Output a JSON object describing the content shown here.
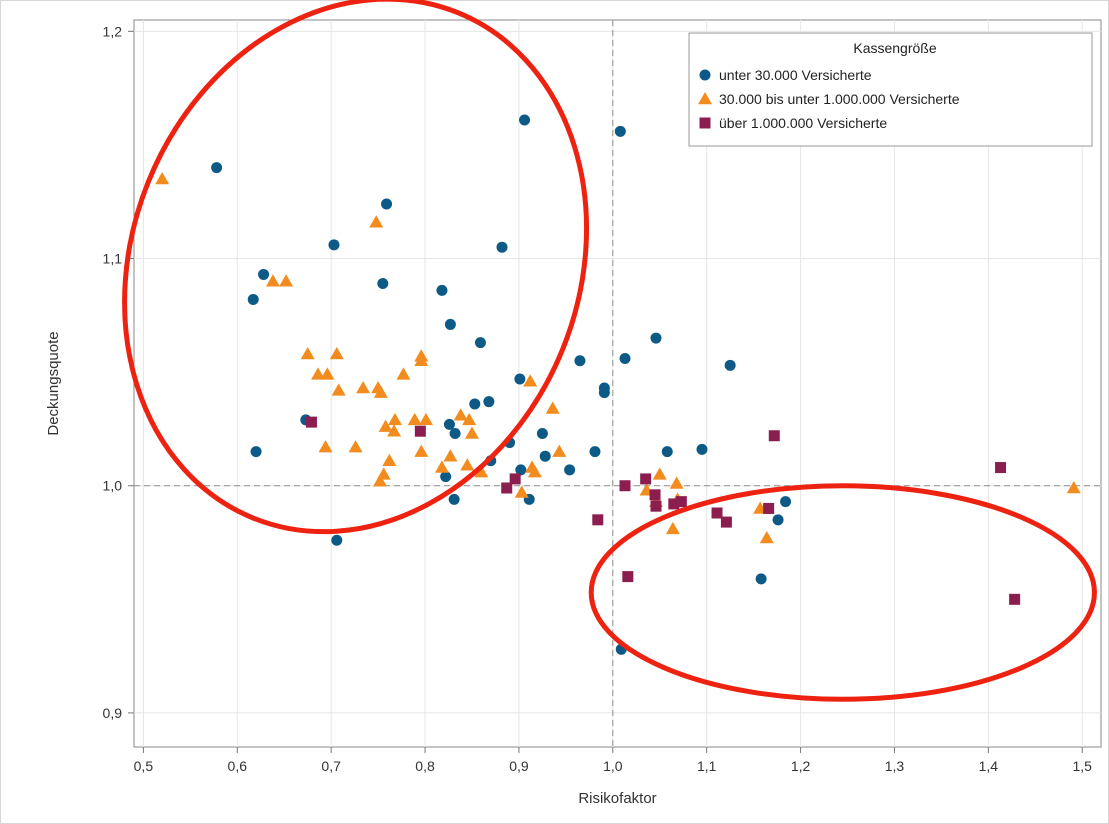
{
  "chart_data": {
    "type": "scatter",
    "xlabel": "Risikofaktor",
    "ylabel": "Deckungsquote",
    "xlim": [
      0.49,
      1.52
    ],
    "ylim": [
      0.885,
      1.205
    ],
    "x_ticks": [
      "0,5",
      "0,6",
      "0,7",
      "0,8",
      "0,9",
      "1,0",
      "1,1",
      "1,2",
      "1,3",
      "1,4",
      "1,5"
    ],
    "y_ticks": [
      "0,9",
      "1,0",
      "1,1",
      "1,2"
    ],
    "reference_lines": {
      "x": 1.0,
      "y": 1.0
    },
    "grid": true,
    "legend": {
      "title": "Kassengröße",
      "placement": "top-right"
    },
    "series": [
      {
        "name": "unter 30.000 Versicherte",
        "marker": "circle",
        "color": "#0d5a86",
        "points": [
          [
            0.578,
            1.14
          ],
          [
            0.628,
            1.093
          ],
          [
            0.617,
            1.082
          ],
          [
            0.703,
            1.106
          ],
          [
            0.759,
            1.124
          ],
          [
            0.755,
            1.089
          ],
          [
            0.906,
            1.161
          ],
          [
            1.008,
            1.156
          ],
          [
            0.882,
            1.105
          ],
          [
            0.818,
            1.086
          ],
          [
            0.827,
            1.071
          ],
          [
            0.859,
            1.063
          ],
          [
            0.901,
            1.047
          ],
          [
            0.965,
            1.055
          ],
          [
            1.013,
            1.056
          ],
          [
            1.046,
            1.065
          ],
          [
            1.125,
            1.053
          ],
          [
            0.991,
            1.043
          ],
          [
            0.991,
            1.041
          ],
          [
            0.853,
            1.036
          ],
          [
            0.868,
            1.037
          ],
          [
            0.673,
            1.029
          ],
          [
            0.62,
            1.015
          ],
          [
            0.826,
            1.027
          ],
          [
            0.832,
            1.023
          ],
          [
            0.89,
            1.019
          ],
          [
            0.925,
            1.023
          ],
          [
            0.87,
            1.011
          ],
          [
            0.902,
            1.007
          ],
          [
            0.928,
            1.013
          ],
          [
            0.954,
            1.007
          ],
          [
            0.981,
            1.015
          ],
          [
            0.822,
            1.004
          ],
          [
            0.831,
            0.994
          ],
          [
            0.911,
            0.994
          ],
          [
            1.058,
            1.015
          ],
          [
            1.095,
            1.016
          ],
          [
            0.706,
            0.976
          ],
          [
            1.184,
            0.993
          ],
          [
            1.176,
            0.985
          ],
          [
            1.158,
            0.959
          ],
          [
            1.009,
            0.928
          ]
        ]
      },
      {
        "name": "30.000 bis unter 1.000.000 Versicherte",
        "marker": "triangle",
        "color": "#f28c1e",
        "points": [
          [
            0.52,
            1.135
          ],
          [
            0.638,
            1.09
          ],
          [
            0.652,
            1.09
          ],
          [
            0.748,
            1.116
          ],
          [
            0.675,
            1.058
          ],
          [
            0.706,
            1.058
          ],
          [
            0.686,
            1.049
          ],
          [
            0.696,
            1.049
          ],
          [
            0.708,
            1.042
          ],
          [
            0.734,
            1.043
          ],
          [
            0.75,
            1.043
          ],
          [
            0.753,
            1.041
          ],
          [
            0.777,
            1.049
          ],
          [
            0.796,
            1.057
          ],
          [
            0.796,
            1.055
          ],
          [
            0.912,
            1.046
          ],
          [
            0.694,
            1.017
          ],
          [
            0.726,
            1.017
          ],
          [
            0.758,
            1.026
          ],
          [
            0.767,
            1.024
          ],
          [
            0.768,
            1.029
          ],
          [
            0.789,
            1.029
          ],
          [
            0.801,
            1.029
          ],
          [
            0.838,
            1.031
          ],
          [
            0.847,
            1.029
          ],
          [
            0.85,
            1.023
          ],
          [
            0.936,
            1.034
          ],
          [
            0.762,
            1.011
          ],
          [
            0.796,
            1.015
          ],
          [
            0.818,
            1.008
          ],
          [
            0.827,
            1.013
          ],
          [
            0.845,
            1.009
          ],
          [
            0.86,
            1.006
          ],
          [
            0.752,
            1.002
          ],
          [
            0.756,
            1.005
          ],
          [
            0.914,
            1.008
          ],
          [
            0.917,
            1.006
          ],
          [
            0.943,
            1.015
          ],
          [
            0.903,
            0.997
          ],
          [
            1.036,
            0.998
          ],
          [
            1.046,
            0.993
          ],
          [
            1.05,
            1.005
          ],
          [
            1.068,
            1.001
          ],
          [
            1.069,
            0.994
          ],
          [
            1.064,
            0.981
          ],
          [
            1.157,
            0.99
          ],
          [
            1.164,
            0.977
          ],
          [
            1.491,
            0.999
          ]
        ]
      },
      {
        "name": "über 1.000.000 Versicherte",
        "marker": "square",
        "color": "#8c1d4f",
        "points": [
          [
            0.679,
            1.028
          ],
          [
            0.795,
            1.024
          ],
          [
            0.887,
            0.999
          ],
          [
            0.896,
            1.003
          ],
          [
            0.984,
            0.985
          ],
          [
            1.013,
            1.0
          ],
          [
            1.016,
            0.96
          ],
          [
            1.035,
            1.003
          ],
          [
            1.045,
            0.996
          ],
          [
            1.046,
            0.991
          ],
          [
            1.065,
            0.992
          ],
          [
            1.073,
            0.993
          ],
          [
            1.111,
            0.988
          ],
          [
            1.121,
            0.984
          ],
          [
            1.166,
            0.99
          ],
          [
            1.172,
            1.022
          ],
          [
            1.413,
            1.008
          ],
          [
            1.428,
            0.95
          ]
        ]
      }
    ],
    "annotations": [
      {
        "shape": "ellipse",
        "color": "#ee2211",
        "center": [
          0.726,
          1.097
        ],
        "rx_data": 0.238,
        "ry_data": 0.12,
        "rotation_deg": 22
      },
      {
        "shape": "ellipse",
        "color": "#ee2211",
        "center": [
          1.245,
          0.953
        ],
        "rx_data": 0.268,
        "ry_data": 0.047,
        "rotation_deg": 0
      }
    ]
  }
}
